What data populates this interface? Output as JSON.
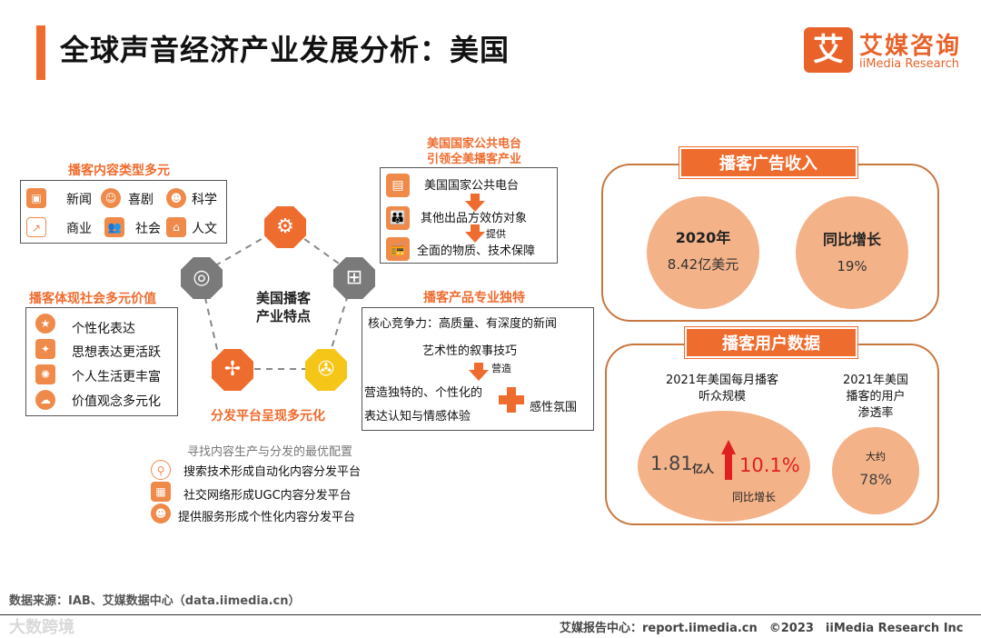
{
  "header": {
    "title": "全球声音经济产业发展分析：美国",
    "logo_mark": "艾",
    "logo_cn": "艾媒咨询",
    "logo_en": "iiMedia Research"
  },
  "content_types": {
    "heading": "播客内容类型多元",
    "items": [
      {
        "label": "新闻",
        "icon": "news-icon"
      },
      {
        "label": "喜剧",
        "icon": "clown-icon"
      },
      {
        "label": "科学",
        "icon": "scientist-icon"
      },
      {
        "label": "商业",
        "icon": "business-chart-icon"
      },
      {
        "label": "社会",
        "icon": "people-icon"
      },
      {
        "label": "人文",
        "icon": "classic-building-icon"
      }
    ]
  },
  "social_values": {
    "heading": "播客体现社会多元价值",
    "items": [
      {
        "label": "个性化表达",
        "icon": "person-star-icon"
      },
      {
        "label": "思想表达更活跃",
        "icon": "gift-idea-icon"
      },
      {
        "label": "个人生活更丰富",
        "icon": "person-idea-icon"
      },
      {
        "label": "价值观念多元化",
        "icon": "person-thought-icon"
      }
    ]
  },
  "center": {
    "line1": "美国播客",
    "line2": "产业特点",
    "distribution_label": "分发平台呈现多元化"
  },
  "public_radio": {
    "heading_line1": "美国国家公共电台",
    "heading_line2": "引领全美播客产业",
    "step1": "美国国家公共电台",
    "step2": "其他出品方效仿对象",
    "provide": "提供",
    "step3": "全面的物质、技术保障"
  },
  "product": {
    "heading": "播客产品专业独特",
    "core": "核心竞争力：高质量、有深度的新闻",
    "art": "艺术性的叙事技巧",
    "create": "营造",
    "unique_line1": "营造独特的、个性化的",
    "unique_line2": "表达认知与情感体验",
    "atmosphere": "感性氛围"
  },
  "distribution": {
    "heading": "寻找内容生产与分发的最优配置",
    "items": [
      {
        "label": "搜索技术形成自动化内容分发平台",
        "icon": "search-icon"
      },
      {
        "label": "社交网络形成UGC内容分发平台",
        "icon": "social-network-icon"
      },
      {
        "label": "提供服务形成个性化内容分发平台",
        "icon": "service-person-icon"
      }
    ]
  },
  "ad_revenue": {
    "tag": "播客广告收入",
    "year_label": "2020年",
    "year_value": "8.42亿美元",
    "growth_label": "同比增长",
    "growth_value": "19%"
  },
  "user_data": {
    "tag": "播客用户数据",
    "audience_title_line1": "2021年美国每月播客",
    "audience_title_line2": "听众规模",
    "audience_value": "1.81",
    "audience_unit": "亿人",
    "audience_growth": "10.1%",
    "audience_growth_label": "同比增长",
    "penetration_title_line1": "2021年美国",
    "penetration_title_line2": "播客的用户",
    "penetration_title_line3": "渗透率",
    "penetration_prefix": "大约",
    "penetration_value": "78%"
  },
  "footer": {
    "source": "数据来源：IAB、艾媒数据中心（data.iimedia.cn）",
    "right": "艾媒报告中心：report.iimedia.cn　©2023　iiMedia Research  Inc",
    "watermark": "大数跨境"
  },
  "colors": {
    "accent": "#ef6c2f",
    "bubble": "#f4b288",
    "panel_border": "#c8773f",
    "growth_red": "#e02020"
  }
}
